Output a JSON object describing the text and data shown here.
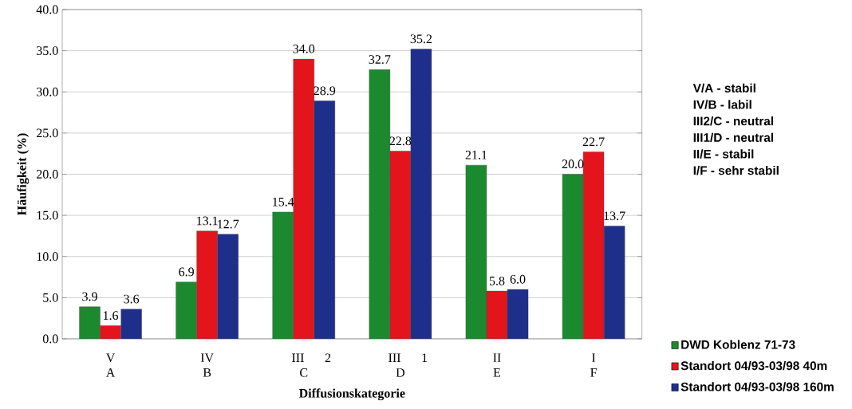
{
  "chart_data": {
    "type": "bar",
    "xlabel": "Diffusionskategorie",
    "ylabel": "Häufigkeit (%)",
    "categories": [
      "V A",
      "IV B",
      "III 2 C",
      "III 1 D",
      "II E",
      "I F"
    ],
    "series": [
      {
        "name": "DWD Koblenz 71-73",
        "color": "#1b8a2e",
        "values": [
          3.9,
          6.9,
          15.4,
          32.7,
          21.1,
          20.0
        ],
        "value_labels": [
          "3.9",
          "6.9",
          "15.4",
          "32.7",
          "21.1",
          "20.0"
        ]
      },
      {
        "name": "Standort 04/93-03/98  40m",
        "color": "#e3141c",
        "values": [
          1.6,
          13.1,
          34.0,
          22.8,
          5.8,
          22.7
        ],
        "value_labels": [
          "1.6",
          "13.1",
          "34.0",
          "22.8",
          "5.8",
          "22.7"
        ]
      },
      {
        "name": "Standort 04/93-03/98  160m",
        "color": "#1d2f8a",
        "values": [
          3.6,
          12.7,
          28.9,
          35.2,
          6.0,
          13.7
        ],
        "value_labels": [
          "3.6",
          "12.7",
          "28.9",
          "35.2",
          "6.0",
          "13.7"
        ]
      }
    ],
    "ylim": [
      0,
      40
    ],
    "yticks": [
      {
        "value": 0,
        "label": "0.0"
      },
      {
        "value": 5,
        "label": "5.0"
      },
      {
        "value": 10,
        "label": "10.0"
      },
      {
        "value": 15,
        "label": "15.0"
      },
      {
        "value": 20,
        "label": "20.0"
      },
      {
        "value": 25,
        "label": "25.0"
      },
      {
        "value": 30,
        "label": "30.0"
      },
      {
        "value": 35,
        "label": "35.0"
      },
      {
        "value": 40,
        "label": "40.0"
      }
    ],
    "grid": "y",
    "legend": "bottom right",
    "annotations": [
      "V/A - stabil",
      "IV/B - labil",
      "III2/C - neutral",
      "III1/D - neutral",
      "II/E - stabil",
      "I/F - sehr stabil"
    ]
  }
}
